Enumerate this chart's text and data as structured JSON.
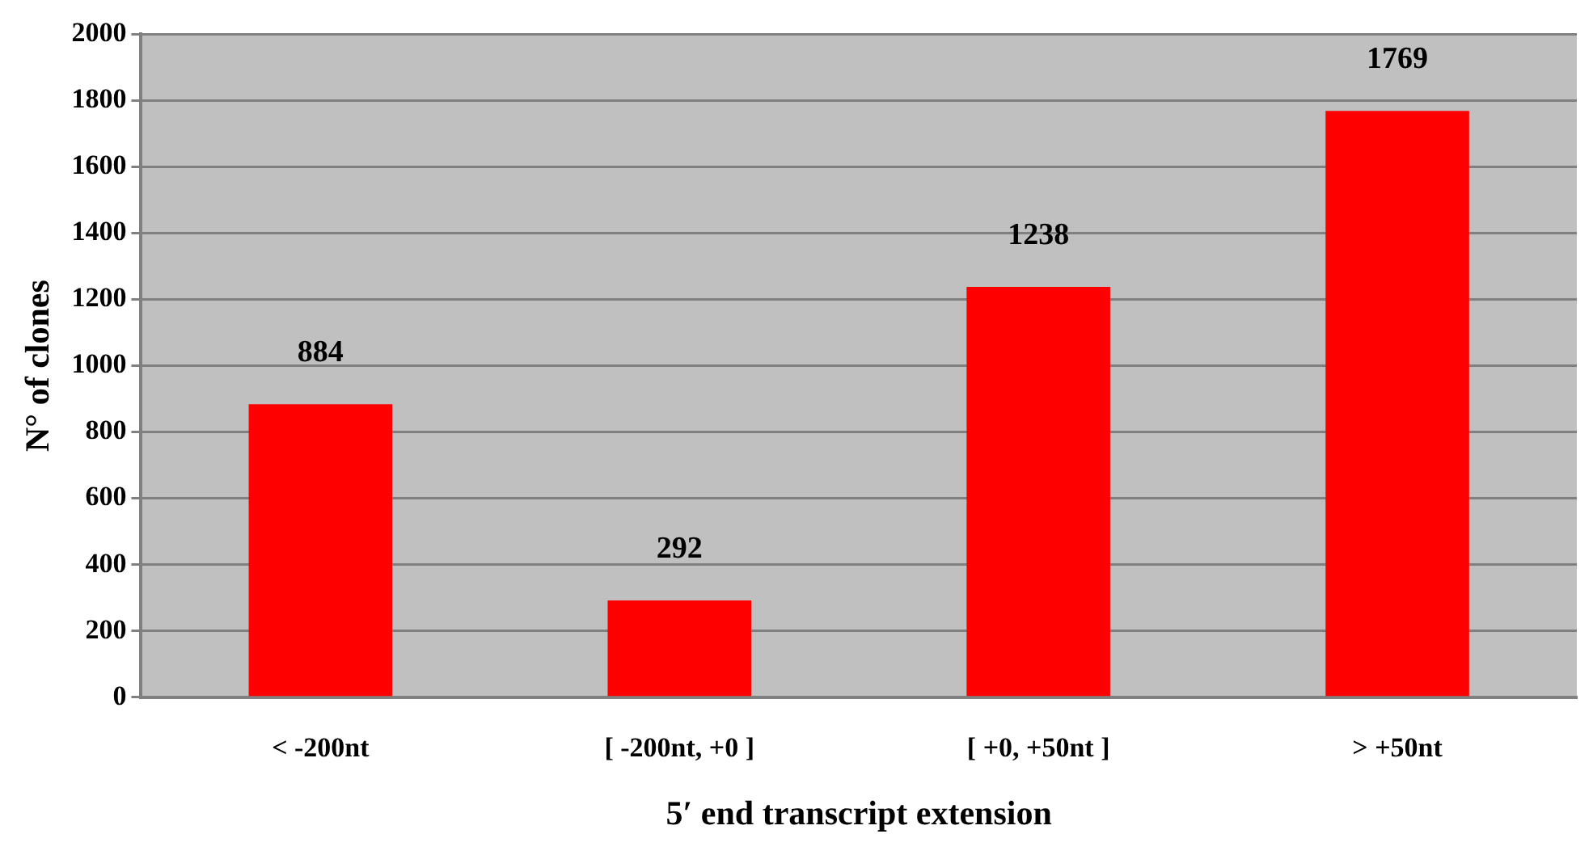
{
  "chart_data": {
    "type": "bar",
    "xlabel": "5′ end transcript extension",
    "ylabel": "N° of clones",
    "categories": [
      "< -200nt",
      "[ -200nt, +0 ]",
      "[ +0, +50nt ]",
      "> +50nt"
    ],
    "values": [
      884,
      292,
      1238,
      1769
    ],
    "color": "#ff0000",
    "ylim": [
      0,
      2000
    ],
    "yticks": [
      0,
      200,
      400,
      600,
      800,
      1000,
      1200,
      1400,
      1600,
      1800,
      2000
    ],
    "grid": "y",
    "data_labels": true,
    "legend": false
  }
}
